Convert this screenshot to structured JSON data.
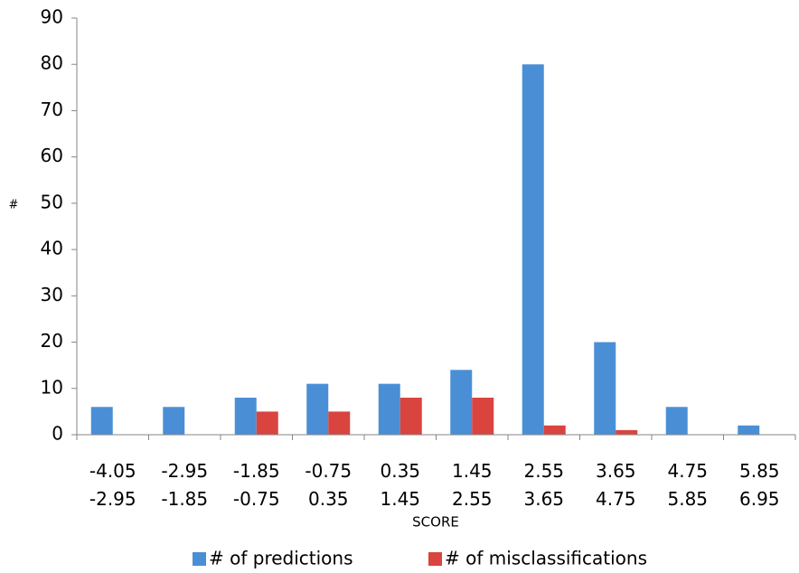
{
  "chart_data": {
    "type": "bar",
    "x_label": "SCORE",
    "y_label": "#",
    "categories": [
      [
        "-4.05",
        "-2.95"
      ],
      [
        "-2.95",
        "-1.85"
      ],
      [
        "-1.85",
        "-0.75"
      ],
      [
        "-0.75",
        "0.35"
      ],
      [
        "0.35",
        "1.45"
      ],
      [
        "1.45",
        "2.55"
      ],
      [
        "2.55",
        "3.65"
      ],
      [
        "3.65",
        "4.75"
      ],
      [
        "4.75",
        "5.85"
      ],
      [
        "5.85",
        "6.95"
      ]
    ],
    "series": [
      {
        "name": "# of predictions",
        "color": "#4a8fd6",
        "values": [
          6,
          6,
          8,
          11,
          11,
          14,
          80,
          20,
          6,
          2
        ]
      },
      {
        "name": "# of misclassifications",
        "color": "#d9443f",
        "values": [
          0,
          0,
          5,
          5,
          8,
          8,
          2,
          1,
          0,
          0
        ]
      }
    ],
    "ylim": [
      0,
      90
    ],
    "yticks": [
      0,
      10,
      20,
      30,
      40,
      50,
      60,
      70,
      80,
      90
    ],
    "grid": false,
    "legend": "bottom"
  }
}
